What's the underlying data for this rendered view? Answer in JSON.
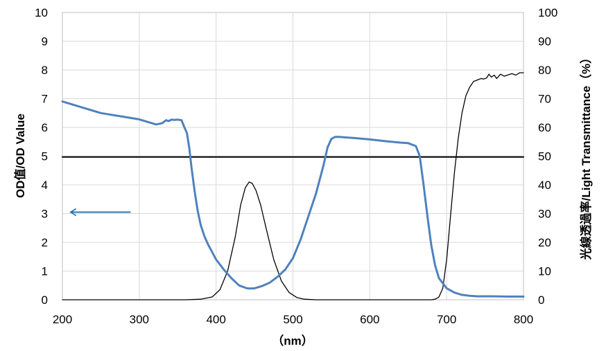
{
  "chart_data": {
    "type": "line",
    "title": "",
    "xlabel": "（nm）",
    "ylabel_left": "OD值/OD Value",
    "ylabel_right": "光線透過率/Light Transmittance（%）",
    "xlim": [
      200,
      800
    ],
    "ylim_left": [
      0,
      10
    ],
    "ylim_right": [
      0,
      100
    ],
    "x_ticks": [
      "200",
      "300",
      "400",
      "500",
      "600",
      "700",
      "800"
    ],
    "y_left_ticks": [
      "0",
      "1",
      "2",
      "3",
      "4",
      "5",
      "6",
      "7",
      "8",
      "9",
      "10"
    ],
    "y_right_ticks": [
      "0",
      "10",
      "20",
      "30",
      "40",
      "50",
      "60",
      "70",
      "80",
      "90",
      "100"
    ],
    "grid": true,
    "colors": {
      "od": "#4f81bd",
      "transmittance": "#000000",
      "reference": "#000000",
      "arrow": "#1f6fb0"
    },
    "series": [
      {
        "axis": "left",
        "x": [
          200,
          250,
          300,
          322,
          330,
          335,
          338,
          342,
          345,
          350,
          355,
          358,
          362,
          365,
          368,
          372,
          376,
          380,
          385,
          390,
          400,
          410,
          420,
          430,
          440,
          445,
          450,
          460,
          470,
          480,
          490,
          500,
          510,
          520,
          530,
          540,
          545,
          550,
          555,
          560,
          580,
          600,
          620,
          640,
          650,
          660,
          665,
          670,
          675,
          680,
          685,
          690,
          700,
          710,
          720,
          730,
          740,
          760,
          780,
          800
        ],
        "values": [
          6.9,
          6.5,
          6.28,
          6.1,
          6.15,
          6.25,
          6.22,
          6.27,
          6.26,
          6.27,
          6.25,
          6.05,
          5.8,
          5.3,
          4.6,
          3.8,
          3.1,
          2.6,
          2.2,
          1.9,
          1.4,
          1.05,
          0.75,
          0.5,
          0.4,
          0.39,
          0.4,
          0.48,
          0.6,
          0.8,
          1.05,
          1.45,
          2.1,
          2.9,
          3.7,
          4.7,
          5.3,
          5.6,
          5.67,
          5.67,
          5.63,
          5.58,
          5.52,
          5.47,
          5.45,
          5.35,
          5.0,
          4.0,
          2.9,
          1.9,
          1.2,
          0.75,
          0.4,
          0.25,
          0.17,
          0.14,
          0.12,
          0.12,
          0.11,
          0.11
        ]
      },
      {
        "axis": "right",
        "x": [
          200,
          360,
          380,
          395,
          405,
          415,
          425,
          432,
          438,
          443,
          447,
          452,
          458,
          465,
          475,
          485,
          495,
          505,
          515,
          530,
          560,
          600,
          650,
          680,
          685,
          690,
          695,
          700,
          705,
          710,
          715,
          720,
          725,
          730,
          735,
          740,
          745,
          748,
          752,
          755,
          758,
          762,
          765,
          770,
          775,
          780,
          785,
          790,
          795,
          800
        ],
        "values": [
          0,
          0,
          0.2,
          1,
          3.5,
          10,
          22,
          33,
          39,
          41,
          40.5,
          38,
          33,
          25,
          14,
          6.5,
          2.5,
          0.8,
          0.2,
          0,
          0,
          0,
          0,
          0,
          0.2,
          1,
          4,
          14,
          29,
          44,
          56,
          65,
          71,
          74,
          76,
          76.5,
          77,
          76.8,
          77.2,
          78.5,
          77.5,
          78.2,
          77,
          78.5,
          77.8,
          78.3,
          78.7,
          78.2,
          79,
          79
        ]
      },
      {
        "axis": "left",
        "x": [
          200,
          800
        ],
        "values": [
          4.97,
          4.97
        ]
      }
    ],
    "annotations": [
      {
        "type": "arrow",
        "direction": "left",
        "x_start": 278,
        "x_end": 290,
        "y": 3.05
      }
    ]
  }
}
